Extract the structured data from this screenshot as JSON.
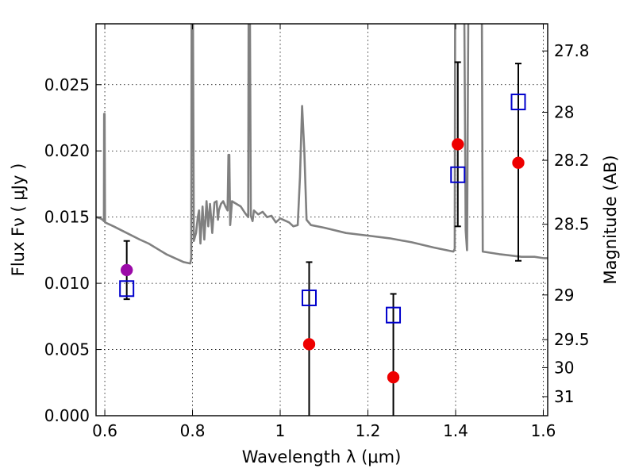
{
  "chart_data": {
    "type": "scatter",
    "xlabel": "Wavelength  λ (μm)",
    "ylabel": "Flux  Fν  ( μJy )",
    "ylabel_right": "Magnitude (AB)",
    "xlim": [
      0.58,
      1.61
    ],
    "ylim": [
      0.0,
      0.0296
    ],
    "grid": true,
    "x_ticks": [
      0.6,
      0.8,
      1.0,
      1.2,
      1.4,
      1.6
    ],
    "x_tick_labels": [
      "0.6",
      "0.8",
      "1",
      "1.2",
      "1.4",
      "1.6"
    ],
    "y_ticks": [
      0.0,
      0.005,
      0.01,
      0.015,
      0.02,
      0.025
    ],
    "y_tick_labels": [
      "0.000",
      "0.005",
      "0.010",
      "0.015",
      "0.020",
      "0.025"
    ],
    "right_ticks": [
      {
        "flux": 0.02755,
        "label": "27.8"
      },
      {
        "flux": 0.02292,
        "label": "28"
      },
      {
        "flux": 0.01929,
        "label": "28.2"
      },
      {
        "flux": 0.01446,
        "label": "28.5"
      },
      {
        "flux": 0.00912,
        "label": "29"
      },
      {
        "flux": 0.00575,
        "label": "29.5"
      },
      {
        "flux": 0.00363,
        "label": "30"
      },
      {
        "flux": 0.00144,
        "label": "31"
      }
    ],
    "series": [
      {
        "kind": "line",
        "color": "#808080",
        "points": [
          [
            0.58,
            0.015
          ],
          [
            0.59,
            0.0149
          ],
          [
            0.595,
            0.0148
          ],
          [
            0.598,
            0.0147
          ],
          [
            0.5985,
            0.0228
          ],
          [
            0.5995,
            0.0228
          ],
          [
            0.6005,
            0.0146
          ],
          [
            0.62,
            0.0143
          ],
          [
            0.65,
            0.0138
          ],
          [
            0.68,
            0.0133
          ],
          [
            0.7,
            0.013
          ],
          [
            0.72,
            0.0126
          ],
          [
            0.74,
            0.0122
          ],
          [
            0.76,
            0.0119
          ],
          [
            0.78,
            0.0116
          ],
          [
            0.795,
            0.0115
          ],
          [
            0.797,
            0.0119
          ],
          [
            0.798,
            0.03
          ],
          [
            0.801,
            0.03
          ],
          [
            0.803,
            0.0132
          ],
          [
            0.808,
            0.0138
          ],
          [
            0.812,
            0.015
          ],
          [
            0.815,
            0.0155
          ],
          [
            0.818,
            0.013
          ],
          [
            0.823,
            0.0158
          ],
          [
            0.827,
            0.0133
          ],
          [
            0.832,
            0.0162
          ],
          [
            0.836,
            0.0143
          ],
          [
            0.84,
            0.016
          ],
          [
            0.845,
            0.0138
          ],
          [
            0.85,
            0.0161
          ],
          [
            0.855,
            0.0162
          ],
          [
            0.858,
            0.0148
          ],
          [
            0.86,
            0.0155
          ],
          [
            0.865,
            0.016
          ],
          [
            0.87,
            0.0162
          ],
          [
            0.875,
            0.0158
          ],
          [
            0.88,
            0.0155
          ],
          [
            0.882,
            0.0197
          ],
          [
            0.884,
            0.0197
          ],
          [
            0.886,
            0.0144
          ],
          [
            0.89,
            0.0162
          ],
          [
            0.9,
            0.016
          ],
          [
            0.91,
            0.0158
          ],
          [
            0.92,
            0.0153
          ],
          [
            0.927,
            0.015
          ],
          [
            0.928,
            0.03
          ],
          [
            0.931,
            0.03
          ],
          [
            0.933,
            0.0151
          ],
          [
            0.937,
            0.0147
          ],
          [
            0.94,
            0.0155
          ],
          [
            0.95,
            0.0152
          ],
          [
            0.96,
            0.0154
          ],
          [
            0.97,
            0.015
          ],
          [
            0.98,
            0.0151
          ],
          [
            0.99,
            0.0146
          ],
          [
            1.0,
            0.0149
          ],
          [
            1.02,
            0.0146
          ],
          [
            1.03,
            0.0143
          ],
          [
            1.04,
            0.0144
          ],
          [
            1.045,
            0.018
          ],
          [
            1.05,
            0.0234
          ],
          [
            1.055,
            0.02
          ],
          [
            1.06,
            0.0148
          ],
          [
            1.07,
            0.0144
          ],
          [
            1.1,
            0.0142
          ],
          [
            1.15,
            0.0138
          ],
          [
            1.2,
            0.0136
          ],
          [
            1.25,
            0.0134
          ],
          [
            1.3,
            0.0131
          ],
          [
            1.35,
            0.0127
          ],
          [
            1.395,
            0.0124
          ],
          [
            1.398,
            0.0126
          ],
          [
            1.399,
            0.03
          ],
          [
            1.402,
            0.03
          ],
          [
            1.41,
            0.03
          ],
          [
            1.42,
            0.03
          ],
          [
            1.423,
            0.014
          ],
          [
            1.426,
            0.0125
          ],
          [
            1.429,
            0.03
          ],
          [
            1.432,
            0.03
          ],
          [
            1.45,
            0.03
          ],
          [
            1.46,
            0.03
          ],
          [
            1.462,
            0.0124
          ],
          [
            1.5,
            0.0122
          ],
          [
            1.55,
            0.012
          ],
          [
            1.58,
            0.012
          ],
          [
            1.6,
            0.0119
          ],
          [
            1.61,
            0.0119
          ]
        ]
      },
      {
        "kind": "errorbars",
        "color": "#000000",
        "bars": [
          {
            "x": 0.65,
            "low": 0.0088,
            "high": 0.0132
          },
          {
            "x": 1.066,
            "low": 0.0,
            "high": 0.0116
          },
          {
            "x": 1.258,
            "low": 0.0,
            "high": 0.0092
          },
          {
            "x": 1.405,
            "low": 0.0143,
            "high": 0.0267
          },
          {
            "x": 1.543,
            "low": 0.0117,
            "high": 0.0266
          }
        ]
      },
      {
        "kind": "squares",
        "color": "#0000cc",
        "points": [
          [
            0.65,
            0.0096
          ],
          [
            1.066,
            0.0089
          ],
          [
            1.258,
            0.0076
          ],
          [
            1.405,
            0.0182
          ],
          [
            1.543,
            0.0237
          ]
        ]
      },
      {
        "kind": "circles",
        "points": [
          {
            "x": 0.65,
            "y": 0.011,
            "color": "#9b0aa8"
          },
          {
            "x": 1.066,
            "y": 0.0054,
            "color": "#ee0000"
          },
          {
            "x": 1.258,
            "y": 0.0029,
            "color": "#ee0000"
          },
          {
            "x": 1.405,
            "y": 0.0205,
            "color": "#ee0000"
          },
          {
            "x": 1.543,
            "y": 0.0191,
            "color": "#ee0000"
          }
        ]
      }
    ]
  }
}
